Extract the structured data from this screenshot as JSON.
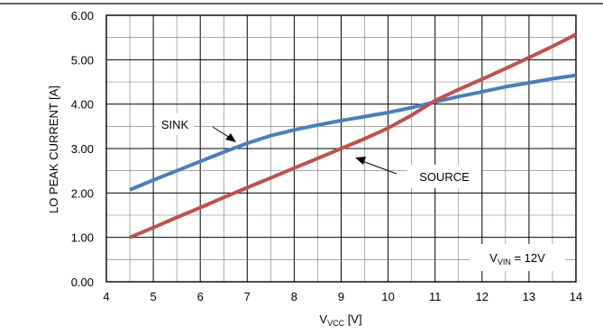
{
  "chart_data": {
    "type": "line",
    "xlabel_main": "V",
    "xlabel_sub": "VCC",
    "xlabel_unit": " [V]",
    "ylabel": "LO PEAK CURRENT [A]",
    "xlim": [
      4,
      14
    ],
    "ylim": [
      0,
      6
    ],
    "x_ticks": [
      "4",
      "5",
      "6",
      "7",
      "8",
      "9",
      "10",
      "11",
      "12",
      "13",
      "14"
    ],
    "y_ticks": [
      "0.00",
      "1.00",
      "2.00",
      "3.00",
      "4.00",
      "5.00",
      "6.00"
    ],
    "grid": true,
    "series": [
      {
        "name": "SINK",
        "color": "#4a7ebb",
        "x": [
          4.5,
          5,
          5.5,
          6,
          6.5,
          7,
          7.5,
          8,
          8.5,
          9,
          9.5,
          10,
          10.5,
          11,
          11.5,
          12,
          12.5,
          13,
          13.5,
          14
        ],
        "y": [
          2.07,
          2.29,
          2.5,
          2.71,
          2.92,
          3.12,
          3.29,
          3.42,
          3.53,
          3.63,
          3.72,
          3.81,
          3.92,
          4.05,
          4.17,
          4.28,
          4.39,
          4.48,
          4.57,
          4.65
        ]
      },
      {
        "name": "SOURCE",
        "color": "#c0504d",
        "x": [
          4.5,
          5,
          5.5,
          6,
          6.5,
          7,
          7.5,
          8,
          8.5,
          9,
          9.5,
          10,
          10.5,
          11,
          11.5,
          12,
          12.5,
          13,
          13.5,
          14
        ],
        "y": [
          1.0,
          1.22,
          1.45,
          1.67,
          1.9,
          2.12,
          2.34,
          2.56,
          2.78,
          3.0,
          3.22,
          3.46,
          3.75,
          4.08,
          4.33,
          4.56,
          4.8,
          5.05,
          5.3,
          5.57
        ]
      }
    ],
    "annotations": {
      "sink_label": "SINK",
      "source_label": "SOURCE",
      "condition_main": "V",
      "condition_sub": "VIN",
      "condition_value": " = 12V"
    }
  }
}
